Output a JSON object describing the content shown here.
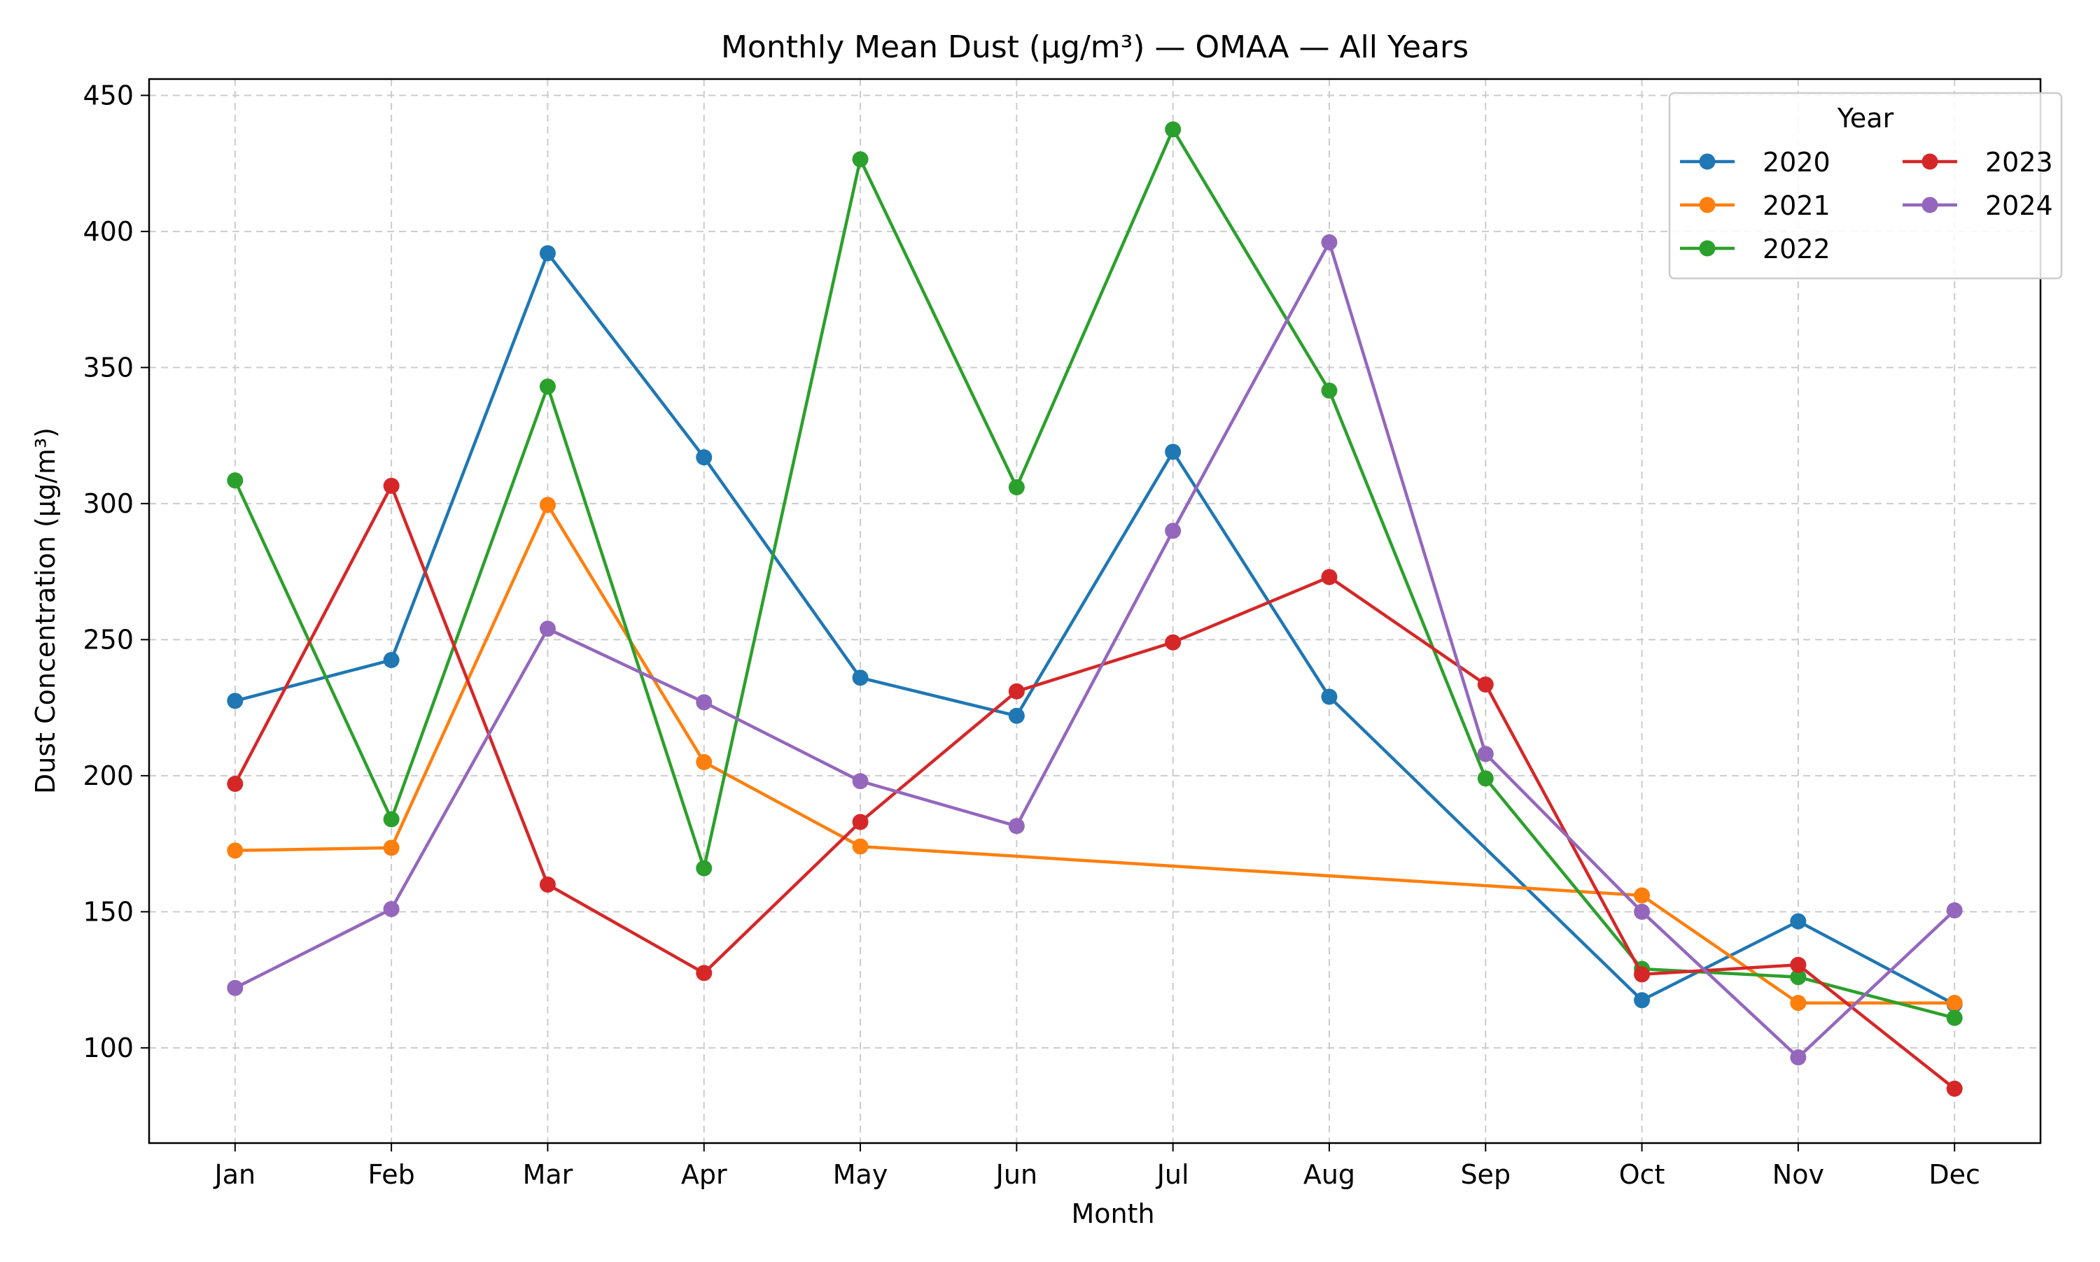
{
  "chart_data": {
    "type": "line",
    "title": "Monthly Mean Dust (µg/m³) — OMAA — All Years",
    "xlabel": "Month",
    "ylabel": "Dust Concentration (µg/m³)",
    "categories": [
      "Jan",
      "Feb",
      "Mar",
      "Apr",
      "May",
      "Jun",
      "Jul",
      "Aug",
      "Sep",
      "Oct",
      "Nov",
      "Dec"
    ],
    "ylim": [
      65,
      456
    ],
    "yticks": [
      "100",
      "150",
      "200",
      "250",
      "300",
      "350",
      "400",
      "450"
    ],
    "grid": true,
    "legend": {
      "title": "Year",
      "placement": "top-right",
      "columns": 2
    },
    "series": [
      {
        "name": "2020",
        "color": "#1f77b4",
        "x": [
          1,
          2,
          3,
          4,
          5,
          6,
          7,
          8,
          10,
          11,
          12
        ],
        "values": [
          227.5,
          242.5,
          392,
          317,
          236,
          222,
          319,
          229,
          117.5,
          146.5,
          116
        ]
      },
      {
        "name": "2021",
        "color": "#ff7f0e",
        "x": [
          1,
          2,
          3,
          4,
          5,
          10,
          11,
          12
        ],
        "values": [
          172.5,
          173.5,
          299.5,
          205,
          174,
          156,
          116.5,
          116.5
        ]
      },
      {
        "name": "2022",
        "color": "#2ca02c",
        "x": [
          1,
          2,
          3,
          4,
          5,
          6,
          7,
          8,
          9,
          10,
          11,
          12
        ],
        "values": [
          308.5,
          184,
          343,
          166,
          426.5,
          306,
          437.5,
          341.5,
          199,
          129,
          126,
          111
        ]
      },
      {
        "name": "2023",
        "color": "#d62728",
        "x": [
          1,
          2,
          3,
          4,
          5,
          6,
          7,
          8,
          9,
          10,
          11,
          12
        ],
        "values": [
          197,
          306.5,
          160,
          127.5,
          183,
          231,
          249,
          273,
          233.5,
          127,
          130.5,
          85
        ]
      },
      {
        "name": "2024",
        "color": "#9467bd",
        "x": [
          1,
          2,
          3,
          4,
          5,
          6,
          7,
          8,
          9,
          10,
          11,
          12
        ],
        "values": [
          122,
          151,
          254,
          227,
          198,
          181.5,
          290,
          396,
          208,
          150,
          96.5,
          150.5
        ]
      }
    ]
  }
}
